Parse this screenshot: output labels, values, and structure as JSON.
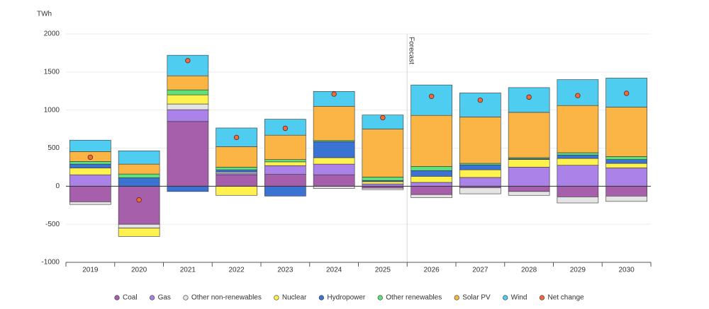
{
  "chart_data": {
    "type": "stacked-bar",
    "y_label": "TWh",
    "annotation": "Forecast",
    "categories": [
      "2019",
      "2020",
      "2021",
      "2022",
      "2023",
      "2024",
      "2025",
      "2026",
      "2027",
      "2028",
      "2029",
      "2030"
    ],
    "series": [
      {
        "name": "Coal",
        "color": "#a65fab",
        "values": [
          -205,
          -500,
          850,
          150,
          155,
          150,
          -25,
          -110,
          -20,
          -70,
          -140,
          -130
        ]
      },
      {
        "name": "Gas",
        "color": "#ab82e8",
        "values": [
          150,
          0,
          155,
          15,
          115,
          140,
          30,
          50,
          115,
          250,
          275,
          240
        ]
      },
      {
        "name": "Other non-renewables",
        "color": "#e4e4e4",
        "values": [
          -35,
          -50,
          75,
          20,
          0,
          -30,
          -20,
          -40,
          -80,
          -50,
          -80,
          -70
        ]
      },
      {
        "name": "Nuclear",
        "color": "#fff24f",
        "values": [
          90,
          -110,
          120,
          -120,
          50,
          85,
          30,
          80,
          100,
          100,
          90,
          60
        ]
      },
      {
        "name": "Hydropower",
        "color": "#3b73d4",
        "values": [
          50,
          110,
          -70,
          30,
          -130,
          210,
          15,
          75,
          65,
          10,
          45,
          50
        ]
      },
      {
        "name": "Other renewables",
        "color": "#5ee07a",
        "values": [
          35,
          50,
          65,
          35,
          30,
          15,
          45,
          55,
          20,
          15,
          30,
          40
        ]
      },
      {
        "name": "Solar PV",
        "color": "#fbb545",
        "values": [
          130,
          130,
          185,
          270,
          320,
          450,
          630,
          670,
          610,
          595,
          620,
          650
        ]
      },
      {
        "name": "Wind",
        "color": "#4fcdf1",
        "values": [
          150,
          175,
          270,
          245,
          210,
          195,
          185,
          400,
          315,
          325,
          340,
          380
        ]
      }
    ],
    "net": {
      "name": "Net change",
      "color": "#f2693a",
      "values": [
        380,
        -180,
        1650,
        640,
        760,
        1210,
        900,
        1180,
        1130,
        1170,
        1190,
        1220
      ]
    },
    "ylim": [
      -1000,
      2000
    ],
    "yticks": [
      -1000,
      -500,
      0,
      500,
      1000,
      1500,
      2000
    ],
    "grid": true
  }
}
